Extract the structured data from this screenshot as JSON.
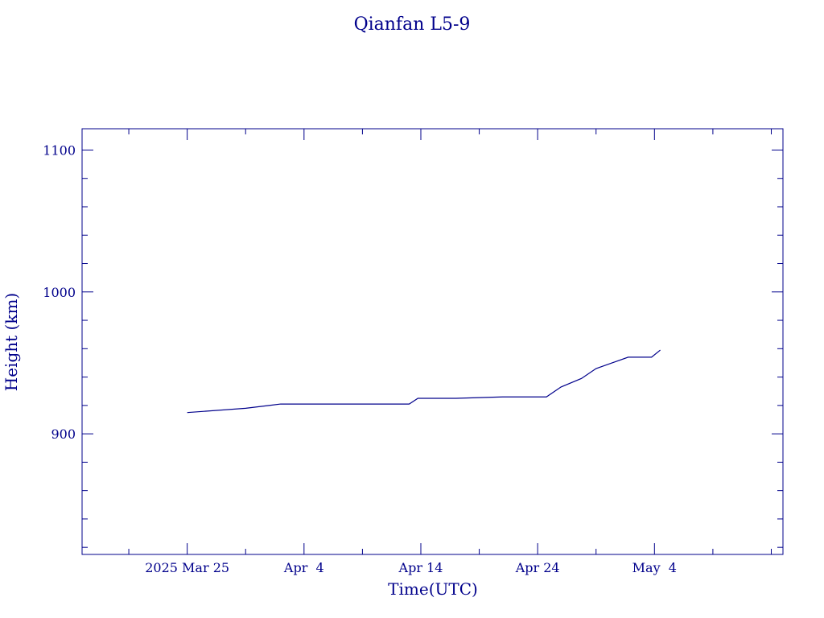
{
  "chart_data": {
    "type": "line",
    "title": "Qianfan L5-9",
    "xlabel": "Time(UTC)",
    "ylabel": "Height (km)",
    "x_range": [
      "2025-03-16",
      "2025-05-15"
    ],
    "ylim": [
      815,
      1115
    ],
    "y_major_ticks": [
      900,
      1000,
      1100
    ],
    "y_minor_step": 20,
    "x_major_ticks": [
      {
        "date": "2025-03-25",
        "label": "2025 Mar 25"
      },
      {
        "date": "2025-04-04",
        "label": "Apr  4"
      },
      {
        "date": "2025-04-14",
        "label": "Apr 14"
      },
      {
        "date": "2025-04-24",
        "label": "Apr 24"
      },
      {
        "date": "2025-05-04",
        "label": "May  4"
      }
    ],
    "x_minor_step_days": 5,
    "grid": false,
    "legend": "none",
    "color": "#00008b",
    "series": [
      {
        "values": [
          [
            "2025-03-25",
            915
          ],
          [
            "2025-03-30",
            918
          ],
          [
            "2025-04-01",
            920
          ],
          [
            "2025-04-02",
            921
          ],
          [
            "2025-04-05",
            921
          ],
          [
            "2025-04-10",
            921
          ],
          [
            "2025-04-13",
            921
          ],
          [
            "2025-04-13T18:00",
            925
          ],
          [
            "2025-04-17",
            925
          ],
          [
            "2025-04-21",
            926
          ],
          [
            "2025-04-24",
            926
          ],
          [
            "2025-04-24T18:00",
            926
          ],
          [
            "2025-04-26",
            933
          ],
          [
            "2025-04-27T18:00",
            939
          ],
          [
            "2025-04-29",
            946
          ],
          [
            "2025-05-01T18:00",
            954
          ],
          [
            "2025-05-03T18:00",
            954
          ],
          [
            "2025-05-04T12:00",
            959
          ]
        ]
      }
    ]
  }
}
